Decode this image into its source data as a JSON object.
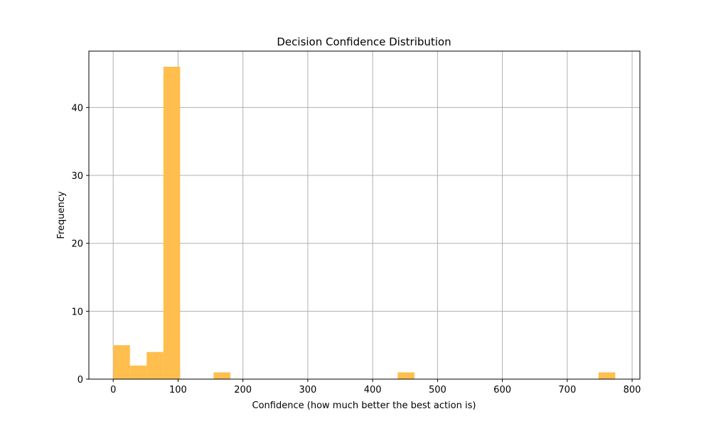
{
  "chart_data": {
    "type": "bar",
    "title": "Decision Confidence Distribution",
    "xlabel": "Confidence (how much better the best action is)",
    "ylabel": "Frequency",
    "xlim": [
      -37.5,
      812.0
    ],
    "ylim": [
      0,
      48.3
    ],
    "xticks": [
      0,
      100,
      200,
      300,
      400,
      500,
      600,
      700,
      800
    ],
    "yticks": [
      0,
      10,
      20,
      30,
      40
    ],
    "grid": true,
    "bar_color": "#ffbe4d",
    "bins": [
      {
        "x0": 0.0,
        "x1": 25.8,
        "value": 5
      },
      {
        "x0": 25.8,
        "x1": 51.6,
        "value": 2
      },
      {
        "x0": 51.6,
        "x1": 77.4,
        "value": 4
      },
      {
        "x0": 77.4,
        "x1": 103.2,
        "value": 46
      },
      {
        "x0": 154.8,
        "x1": 180.6,
        "value": 1
      },
      {
        "x0": 438.6,
        "x1": 464.4,
        "value": 1
      },
      {
        "x0": 748.2,
        "x1": 774.0,
        "value": 1
      }
    ]
  }
}
